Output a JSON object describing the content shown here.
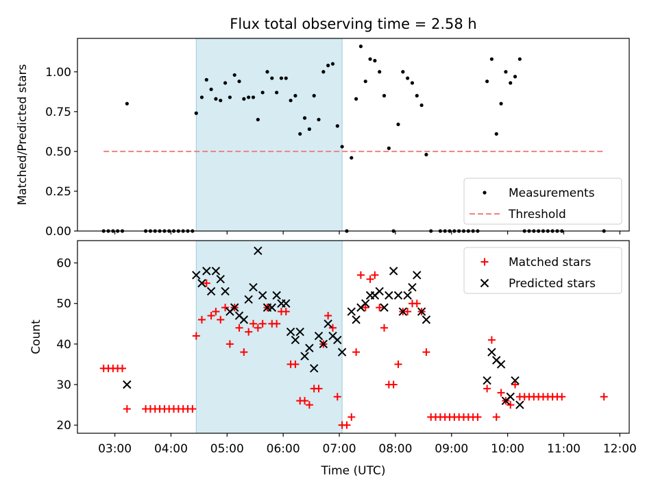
{
  "chart_data": [
    {
      "type": "scatter",
      "title": "Flux total observing time = 2.58 h",
      "xlabel": "",
      "ylabel": "Matched/Predicted stars",
      "xlim": [
        "02:20",
        "12:10"
      ],
      "ylim": [
        0,
        1.21
      ],
      "yticks": [
        "0.00",
        "0.25",
        "0.50",
        "0.75",
        "1.00"
      ],
      "highlight_span": [
        "04:27",
        "07:03"
      ],
      "grid": false,
      "legend_position": "lower-right",
      "series": [
        {
          "name": "Measurements",
          "marker": "dot",
          "color": "#000000",
          "points": [
            [
              "02:48",
              0
            ],
            [
              "02:53",
              0
            ],
            [
              "02:58",
              0
            ],
            [
              "03:03",
              0
            ],
            [
              "03:08",
              0
            ],
            [
              "03:13",
              0.8
            ],
            [
              "03:33",
              0
            ],
            [
              "03:38",
              0
            ],
            [
              "03:43",
              0
            ],
            [
              "03:48",
              0
            ],
            [
              "03:53",
              0
            ],
            [
              "03:58",
              0
            ],
            [
              "04:03",
              0
            ],
            [
              "04:08",
              0
            ],
            [
              "04:13",
              0
            ],
            [
              "04:18",
              0
            ],
            [
              "04:23",
              0
            ],
            [
              "04:27",
              0.74
            ],
            [
              "04:33",
              0.84
            ],
            [
              "04:38",
              0.95
            ],
            [
              "04:43",
              0.89
            ],
            [
              "04:48",
              0.83
            ],
            [
              "04:53",
              0.82
            ],
            [
              "04:58",
              0.93
            ],
            [
              "05:03",
              0.84
            ],
            [
              "05:08",
              0.98
            ],
            [
              "05:13",
              0.94
            ],
            [
              "05:18",
              0.83
            ],
            [
              "05:23",
              0.84
            ],
            [
              "05:28",
              0.84
            ],
            [
              "05:33",
              0.7
            ],
            [
              "05:38",
              0.87
            ],
            [
              "05:43",
              1.0
            ],
            [
              "05:48",
              0.96
            ],
            [
              "05:53",
              0.87
            ],
            [
              "05:58",
              0.96
            ],
            [
              "06:03",
              0.96
            ],
            [
              "06:08",
              0.82
            ],
            [
              "06:13",
              0.85
            ],
            [
              "06:18",
              0.61
            ],
            [
              "06:23",
              0.71
            ],
            [
              "06:28",
              0.64
            ],
            [
              "06:33",
              0.85
            ],
            [
              "06:38",
              0.7
            ],
            [
              "06:43",
              1.0
            ],
            [
              "06:48",
              1.04
            ],
            [
              "06:53",
              1.05
            ],
            [
              "06:58",
              0.66
            ],
            [
              "07:03",
              0.53
            ],
            [
              "07:08",
              0
            ],
            [
              "07:13",
              0.46
            ],
            [
              "07:18",
              0.83
            ],
            [
              "07:23",
              1.16
            ],
            [
              "07:28",
              0.94
            ],
            [
              "07:33",
              1.08
            ],
            [
              "07:38",
              1.07
            ],
            [
              "07:43",
              1.0
            ],
            [
              "07:48",
              0.85
            ],
            [
              "07:53",
              0.52
            ],
            [
              "07:58",
              0
            ],
            [
              "08:03",
              0.67
            ],
            [
              "08:08",
              1.0
            ],
            [
              "08:13",
              0.96
            ],
            [
              "08:18",
              0.93
            ],
            [
              "08:23",
              0.85
            ],
            [
              "08:28",
              0.79
            ],
            [
              "08:33",
              0.48
            ],
            [
              "08:38",
              0
            ],
            [
              "08:48",
              0
            ],
            [
              "08:53",
              0
            ],
            [
              "08:58",
              0
            ],
            [
              "09:03",
              0
            ],
            [
              "09:08",
              0
            ],
            [
              "09:13",
              0
            ],
            [
              "09:18",
              0
            ],
            [
              "09:23",
              0
            ],
            [
              "09:28",
              0
            ],
            [
              "09:38",
              0.94
            ],
            [
              "09:43",
              1.08
            ],
            [
              "09:48",
              0.61
            ],
            [
              "09:53",
              0.8
            ],
            [
              "09:58",
              1.0
            ],
            [
              "10:03",
              0.93
            ],
            [
              "10:08",
              0.97
            ],
            [
              "10:13",
              1.08
            ],
            [
              "10:18",
              0
            ],
            [
              "10:23",
              0
            ],
            [
              "10:28",
              0
            ],
            [
              "10:33",
              0
            ],
            [
              "10:38",
              0
            ],
            [
              "10:43",
              0
            ],
            [
              "10:48",
              0
            ],
            [
              "10:53",
              0
            ],
            [
              "10:58",
              0
            ],
            [
              "11:43",
              0
            ]
          ]
        },
        {
          "name": "Threshold",
          "marker": "dashed-line",
          "color": "#f08080",
          "points": [
            [
              "02:48",
              0.5
            ],
            [
              "11:43",
              0.5
            ]
          ]
        }
      ]
    },
    {
      "type": "scatter",
      "title": "",
      "xlabel": "Time (UTC)",
      "ylabel": "Count",
      "xlim": [
        "02:20",
        "12:10"
      ],
      "ylim": [
        18,
        65.5
      ],
      "yticks": [
        "20",
        "30",
        "40",
        "50",
        "60"
      ],
      "xticks": [
        "03:00",
        "04:00",
        "05:00",
        "06:00",
        "07:00",
        "08:00",
        "09:00",
        "10:00",
        "11:00",
        "12:00"
      ],
      "highlight_span": [
        "04:27",
        "07:03"
      ],
      "grid": false,
      "legend_position": "upper-right",
      "series": [
        {
          "name": "Matched stars",
          "marker": "plus",
          "color": "#ff0000",
          "points": [
            [
              "02:48",
              34
            ],
            [
              "02:53",
              34
            ],
            [
              "02:58",
              34
            ],
            [
              "03:03",
              34
            ],
            [
              "03:08",
              34
            ],
            [
              "03:13",
              24
            ],
            [
              "03:33",
              24
            ],
            [
              "03:38",
              24
            ],
            [
              "03:43",
              24
            ],
            [
              "03:48",
              24
            ],
            [
              "03:53",
              24
            ],
            [
              "03:58",
              24
            ],
            [
              "04:03",
              24
            ],
            [
              "04:08",
              24
            ],
            [
              "04:13",
              24
            ],
            [
              "04:18",
              24
            ],
            [
              "04:23",
              24
            ],
            [
              "04:27",
              42
            ],
            [
              "04:33",
              46
            ],
            [
              "04:38",
              55
            ],
            [
              "04:43",
              47
            ],
            [
              "04:48",
              48
            ],
            [
              "04:53",
              46
            ],
            [
              "04:58",
              49
            ],
            [
              "05:03",
              40
            ],
            [
              "05:08",
              49
            ],
            [
              "05:13",
              44
            ],
            [
              "05:18",
              38
            ],
            [
              "05:23",
              43
            ],
            [
              "05:28",
              45
            ],
            [
              "05:33",
              44
            ],
            [
              "05:38",
              45
            ],
            [
              "05:43",
              49
            ],
            [
              "05:48",
              45
            ],
            [
              "05:53",
              45
            ],
            [
              "05:58",
              48
            ],
            [
              "06:03",
              48
            ],
            [
              "06:08",
              35
            ],
            [
              "06:13",
              35
            ],
            [
              "06:18",
              26
            ],
            [
              "06:23",
              26
            ],
            [
              "06:28",
              25
            ],
            [
              "06:33",
              29
            ],
            [
              "06:38",
              29
            ],
            [
              "06:43",
              40
            ],
            [
              "06:48",
              47
            ],
            [
              "06:53",
              44
            ],
            [
              "06:58",
              27
            ],
            [
              "07:03",
              20
            ],
            [
              "07:08",
              20
            ],
            [
              "07:13",
              22
            ],
            [
              "07:18",
              38
            ],
            [
              "07:23",
              57
            ],
            [
              "07:28",
              49
            ],
            [
              "07:33",
              56
            ],
            [
              "07:38",
              57
            ],
            [
              "07:43",
              49
            ],
            [
              "07:48",
              44
            ],
            [
              "07:53",
              30
            ],
            [
              "07:58",
              30
            ],
            [
              "08:03",
              35
            ],
            [
              "08:08",
              48
            ],
            [
              "08:13",
              48
            ],
            [
              "08:18",
              50
            ],
            [
              "08:23",
              50
            ],
            [
              "08:28",
              48
            ],
            [
              "08:33",
              38
            ],
            [
              "08:38",
              22
            ],
            [
              "08:43",
              22
            ],
            [
              "08:48",
              22
            ],
            [
              "08:53",
              22
            ],
            [
              "08:58",
              22
            ],
            [
              "09:03",
              22
            ],
            [
              "09:08",
              22
            ],
            [
              "09:13",
              22
            ],
            [
              "09:18",
              22
            ],
            [
              "09:23",
              22
            ],
            [
              "09:28",
              22
            ],
            [
              "09:38",
              29
            ],
            [
              "09:43",
              41
            ],
            [
              "09:48",
              22
            ],
            [
              "09:53",
              28
            ],
            [
              "09:58",
              26
            ],
            [
              "10:03",
              25
            ],
            [
              "10:08",
              30
            ],
            [
              "10:13",
              27
            ],
            [
              "10:18",
              27
            ],
            [
              "10:23",
              27
            ],
            [
              "10:28",
              27
            ],
            [
              "10:33",
              27
            ],
            [
              "10:38",
              27
            ],
            [
              "10:43",
              27
            ],
            [
              "10:48",
              27
            ],
            [
              "10:53",
              27
            ],
            [
              "10:58",
              27
            ],
            [
              "11:43",
              27
            ]
          ]
        },
        {
          "name": "Predicted stars",
          "marker": "x",
          "color": "#000000",
          "points": [
            [
              "03:13",
              30
            ],
            [
              "04:27",
              57
            ],
            [
              "04:33",
              55
            ],
            [
              "04:38",
              58
            ],
            [
              "04:43",
              53
            ],
            [
              "04:48",
              58
            ],
            [
              "04:53",
              56
            ],
            [
              "04:58",
              53
            ],
            [
              "05:03",
              48
            ],
            [
              "05:08",
              49
            ],
            [
              "05:13",
              47
            ],
            [
              "05:18",
              46
            ],
            [
              "05:23",
              51
            ],
            [
              "05:28",
              54
            ],
            [
              "05:33",
              63
            ],
            [
              "05:38",
              52
            ],
            [
              "05:43",
              49
            ],
            [
              "05:48",
              49
            ],
            [
              "05:53",
              52
            ],
            [
              "05:58",
              50
            ],
            [
              "06:03",
              50
            ],
            [
              "06:08",
              43
            ],
            [
              "06:13",
              41
            ],
            [
              "06:18",
              43
            ],
            [
              "06:23",
              37
            ],
            [
              "06:28",
              39
            ],
            [
              "06:33",
              34
            ],
            [
              "06:38",
              42
            ],
            [
              "06:43",
              40
            ],
            [
              "06:48",
              45
            ],
            [
              "06:53",
              42
            ],
            [
              "06:58",
              41
            ],
            [
              "07:03",
              38
            ],
            [
              "07:13",
              48
            ],
            [
              "07:18",
              46
            ],
            [
              "07:23",
              49
            ],
            [
              "07:28",
              50
            ],
            [
              "07:33",
              52
            ],
            [
              "07:38",
              52
            ],
            [
              "07:43",
              53
            ],
            [
              "07:48",
              49
            ],
            [
              "07:53",
              52
            ],
            [
              "07:58",
              58
            ],
            [
              "08:03",
              52
            ],
            [
              "08:08",
              48
            ],
            [
              "08:13",
              52
            ],
            [
              "08:18",
              54
            ],
            [
              "08:23",
              57
            ],
            [
              "08:28",
              48
            ],
            [
              "08:33",
              46
            ],
            [
              "09:38",
              31
            ],
            [
              "09:43",
              38
            ],
            [
              "09:48",
              36
            ],
            [
              "09:53",
              35
            ],
            [
              "09:58",
              26
            ],
            [
              "10:03",
              27
            ],
            [
              "10:08",
              31
            ],
            [
              "10:13",
              25
            ]
          ]
        }
      ]
    }
  ]
}
